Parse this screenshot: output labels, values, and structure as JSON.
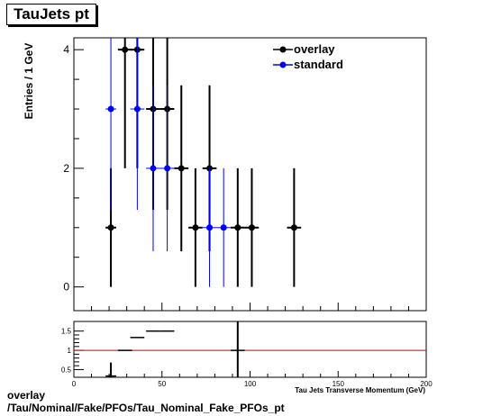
{
  "title": "TauJets pt",
  "footer": {
    "line1": "overlay",
    "line2": "/Tau/Nominal/Fake/PFOs/Tau_Nominal_Fake_PFOs_pt"
  },
  "chart_data": [
    {
      "type": "scatter",
      "ylabel": "Entries / 1 GeV",
      "xlim": [
        0,
        200
      ],
      "ylim": [
        -0.4,
        4.2
      ],
      "yticks": [
        "0",
        "2",
        "4"
      ],
      "legend": {
        "position": "top-right"
      },
      "series": [
        {
          "name": "overlay",
          "color": "#000000",
          "points": [
            {
              "x": 21,
              "y": 1,
              "err": 1,
              "xerr": 3
            },
            {
              "x": 29,
              "y": 4,
              "err": 2,
              "xerr": 4
            },
            {
              "x": 36,
              "y": 4,
              "err": 2,
              "xerr": 4
            },
            {
              "x": 45,
              "y": 3,
              "err": 1.7,
              "xerr": 4
            },
            {
              "x": 53,
              "y": 3,
              "err": 1.7,
              "xerr": 4
            },
            {
              "x": 61,
              "y": 2,
              "err": 1.4,
              "xerr": 4
            },
            {
              "x": 69,
              "y": 1,
              "err": 1,
              "xerr": 4
            },
            {
              "x": 77,
              "y": 2,
              "err": 1.4,
              "xerr": 4
            },
            {
              "x": 93,
              "y": 1,
              "err": 1,
              "xerr": 4
            },
            {
              "x": 101,
              "y": 1,
              "err": 1,
              "xerr": 4
            },
            {
              "x": 125,
              "y": 1,
              "err": 1,
              "xerr": 4
            }
          ]
        },
        {
          "name": "standard",
          "color": "#0000ff",
          "points": [
            {
              "x": 21,
              "y": 3,
              "err": 1.7,
              "xerr": 3
            },
            {
              "x": 36,
              "y": 3,
              "err": 1.7,
              "xerr": 4
            },
            {
              "x": 45,
              "y": 2,
              "err": 1.4,
              "xerr": 4
            },
            {
              "x": 53,
              "y": 2,
              "err": 1.4,
              "xerr": 4
            },
            {
              "x": 77,
              "y": 1,
              "err": 1,
              "xerr": 4
            },
            {
              "x": 85,
              "y": 1,
              "err": 1,
              "xerr": 4
            }
          ]
        }
      ]
    },
    {
      "type": "scatter",
      "xlabel": "Tau Jets Transverse Momentum (GeV)",
      "xlim": [
        0,
        200
      ],
      "ylim": [
        0.3,
        1.75
      ],
      "xticks": [
        "0",
        "50",
        "100",
        "150",
        "200"
      ],
      "yticks": [
        "0.5",
        "1",
        "1.5"
      ],
      "reference_line": {
        "y": 1,
        "color": "#cc0000"
      },
      "series": [
        {
          "name": "",
          "color": "#000000",
          "points": [
            {
              "x": 21,
              "y": 0.333,
              "err": 0.35,
              "xerr": 3
            },
            {
              "x": 29,
              "y": 1.0,
              "err": 0,
              "xerr": 4
            },
            {
              "x": 36,
              "y": 1.333,
              "err": 0,
              "xerr": 4
            },
            {
              "x": 45,
              "y": 1.5,
              "err": 0,
              "xerr": 4
            },
            {
              "x": 53,
              "y": 1.5,
              "err": 0,
              "xerr": 4
            },
            {
              "x": 93,
              "y": 1.0,
              "err": 1.0,
              "xerr": 4
            }
          ]
        }
      ]
    }
  ]
}
